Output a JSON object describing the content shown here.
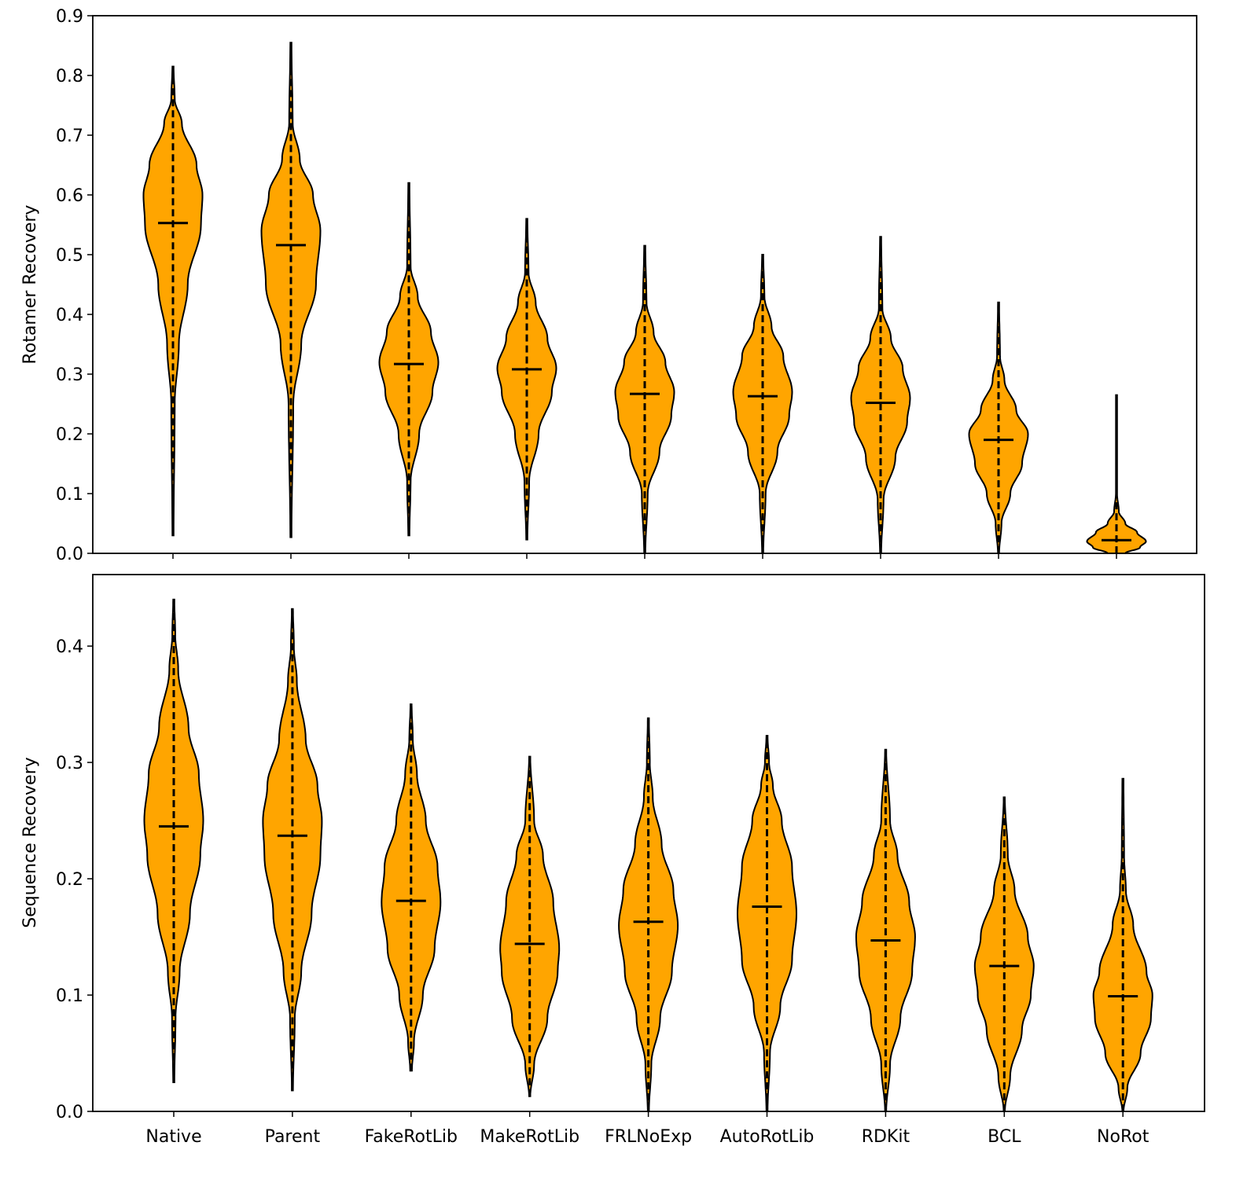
{
  "chart_data": [
    {
      "type": "violin",
      "panel": "top",
      "title": "",
      "xlabel": "",
      "ylabel": "Rotamer Recovery",
      "ylim": [
        0,
        0.9
      ],
      "yticks": [
        "0.0",
        "0.1",
        "0.2",
        "0.3",
        "0.4",
        "0.5",
        "0.6",
        "0.7",
        "0.8",
        "0.9"
      ],
      "fill_color": "#FFA500",
      "categories": [
        "Native",
        "Parent",
        "FakeRotLib",
        "MakeRotLib",
        "FRLNoExp",
        "AutoRotLib",
        "RDKit",
        "BCL",
        "NoRot"
      ],
      "violins": [
        {
          "min": 0.03,
          "max": 0.815,
          "median": 0.553,
          "profile": [
            [
              0.03,
              0.02
            ],
            [
              0.25,
              0.06
            ],
            [
              0.35,
              0.2
            ],
            [
              0.45,
              0.5
            ],
            [
              0.55,
              0.95
            ],
            [
              0.6,
              1.0
            ],
            [
              0.65,
              0.8
            ],
            [
              0.72,
              0.3
            ],
            [
              0.76,
              0.06
            ],
            [
              0.815,
              0.02
            ]
          ]
        },
        {
          "min": 0.027,
          "max": 0.855,
          "median": 0.516,
          "profile": [
            [
              0.027,
              0.02
            ],
            [
              0.25,
              0.08
            ],
            [
              0.35,
              0.35
            ],
            [
              0.45,
              0.85
            ],
            [
              0.54,
              1.0
            ],
            [
              0.6,
              0.75
            ],
            [
              0.66,
              0.3
            ],
            [
              0.72,
              0.06
            ],
            [
              0.855,
              0.02
            ]
          ]
        },
        {
          "min": 0.03,
          "max": 0.62,
          "median": 0.317,
          "profile": [
            [
              0.03,
              0.02
            ],
            [
              0.12,
              0.06
            ],
            [
              0.2,
              0.35
            ],
            [
              0.27,
              0.8
            ],
            [
              0.32,
              1.0
            ],
            [
              0.37,
              0.75
            ],
            [
              0.43,
              0.3
            ],
            [
              0.48,
              0.06
            ],
            [
              0.62,
              0.02
            ]
          ]
        },
        {
          "min": 0.023,
          "max": 0.56,
          "median": 0.308,
          "profile": [
            [
              0.023,
              0.02
            ],
            [
              0.12,
              0.08
            ],
            [
              0.2,
              0.4
            ],
            [
              0.27,
              0.85
            ],
            [
              0.31,
              1.0
            ],
            [
              0.36,
              0.7
            ],
            [
              0.42,
              0.3
            ],
            [
              0.47,
              0.06
            ],
            [
              0.56,
              0.02
            ]
          ]
        },
        {
          "min": 0.0,
          "max": 0.515,
          "median": 0.267,
          "profile": [
            [
              0.0,
              0.02
            ],
            [
              0.1,
              0.1
            ],
            [
              0.17,
              0.5
            ],
            [
              0.23,
              0.9
            ],
            [
              0.27,
              1.0
            ],
            [
              0.32,
              0.7
            ],
            [
              0.37,
              0.3
            ],
            [
              0.42,
              0.06
            ],
            [
              0.515,
              0.02
            ]
          ]
        },
        {
          "min": 0.0,
          "max": 0.5,
          "median": 0.263,
          "profile": [
            [
              0.0,
              0.02
            ],
            [
              0.1,
              0.1
            ],
            [
              0.17,
              0.5
            ],
            [
              0.23,
              0.9
            ],
            [
              0.27,
              1.0
            ],
            [
              0.33,
              0.7
            ],
            [
              0.38,
              0.3
            ],
            [
              0.43,
              0.06
            ],
            [
              0.5,
              0.02
            ]
          ]
        },
        {
          "min": 0.0,
          "max": 0.53,
          "median": 0.252,
          "profile": [
            [
              0.0,
              0.02
            ],
            [
              0.09,
              0.1
            ],
            [
              0.16,
              0.5
            ],
            [
              0.22,
              0.9
            ],
            [
              0.26,
              1.0
            ],
            [
              0.31,
              0.75
            ],
            [
              0.36,
              0.35
            ],
            [
              0.41,
              0.06
            ],
            [
              0.53,
              0.02
            ]
          ]
        },
        {
          "min": 0.0,
          "max": 0.42,
          "median": 0.19,
          "profile": [
            [
              0.0,
              0.02
            ],
            [
              0.05,
              0.1
            ],
            [
              0.1,
              0.4
            ],
            [
              0.15,
              0.8
            ],
            [
              0.2,
              1.0
            ],
            [
              0.24,
              0.6
            ],
            [
              0.29,
              0.2
            ],
            [
              0.33,
              0.05
            ],
            [
              0.42,
              0.02
            ]
          ]
        },
        {
          "min": 0.0,
          "max": 0.265,
          "median": 0.022,
          "profile": [
            [
              0.0,
              0.3
            ],
            [
              0.01,
              0.8
            ],
            [
              0.02,
              1.0
            ],
            [
              0.035,
              0.7
            ],
            [
              0.05,
              0.3
            ],
            [
              0.07,
              0.08
            ],
            [
              0.1,
              0.02
            ],
            [
              0.265,
              0.02
            ]
          ]
        }
      ]
    },
    {
      "type": "violin",
      "panel": "bottom",
      "title": "",
      "xlabel": "",
      "ylabel": "Sequence Recovery",
      "ylim": [
        0,
        0.4615
      ],
      "yticks": [
        "0.0",
        "0.1",
        "0.2",
        "0.3",
        "0.4"
      ],
      "fill_color": "#FFA500",
      "categories": [
        "Native",
        "Parent",
        "FakeRotLib",
        "MakeRotLib",
        "FRLNoExp",
        "AutoRotLib",
        "RDKit",
        "BCL",
        "NoRot"
      ],
      "violins": [
        {
          "min": 0.025,
          "max": 0.44,
          "median": 0.245,
          "profile": [
            [
              0.025,
              0.02
            ],
            [
              0.08,
              0.06
            ],
            [
              0.12,
              0.2
            ],
            [
              0.17,
              0.55
            ],
            [
              0.22,
              0.9
            ],
            [
              0.25,
              1.0
            ],
            [
              0.29,
              0.85
            ],
            [
              0.33,
              0.5
            ],
            [
              0.38,
              0.15
            ],
            [
              0.41,
              0.05
            ],
            [
              0.44,
              0.02
            ]
          ]
        },
        {
          "min": 0.018,
          "max": 0.432,
          "median": 0.237,
          "profile": [
            [
              0.018,
              0.02
            ],
            [
              0.08,
              0.08
            ],
            [
              0.12,
              0.3
            ],
            [
              0.17,
              0.65
            ],
            [
              0.22,
              0.95
            ],
            [
              0.25,
              1.0
            ],
            [
              0.28,
              0.85
            ],
            [
              0.32,
              0.45
            ],
            [
              0.37,
              0.15
            ],
            [
              0.4,
              0.05
            ],
            [
              0.432,
              0.02
            ]
          ]
        },
        {
          "min": 0.035,
          "max": 0.35,
          "median": 0.181,
          "profile": [
            [
              0.035,
              0.03
            ],
            [
              0.06,
              0.1
            ],
            [
              0.1,
              0.4
            ],
            [
              0.14,
              0.8
            ],
            [
              0.18,
              1.0
            ],
            [
              0.21,
              0.9
            ],
            [
              0.25,
              0.5
            ],
            [
              0.29,
              0.2
            ],
            [
              0.32,
              0.06
            ],
            [
              0.35,
              0.02
            ]
          ]
        },
        {
          "min": 0.013,
          "max": 0.305,
          "median": 0.144,
          "profile": [
            [
              0.013,
              0.02
            ],
            [
              0.04,
              0.15
            ],
            [
              0.08,
              0.6
            ],
            [
              0.12,
              0.95
            ],
            [
              0.14,
              1.0
            ],
            [
              0.18,
              0.8
            ],
            [
              0.22,
              0.45
            ],
            [
              0.25,
              0.15
            ],
            [
              0.305,
              0.02
            ]
          ]
        },
        {
          "min": 0.0,
          "max": 0.338,
          "median": 0.163,
          "profile": [
            [
              0.0,
              0.02
            ],
            [
              0.04,
              0.1
            ],
            [
              0.08,
              0.4
            ],
            [
              0.12,
              0.8
            ],
            [
              0.16,
              1.0
            ],
            [
              0.19,
              0.85
            ],
            [
              0.23,
              0.45
            ],
            [
              0.27,
              0.15
            ],
            [
              0.3,
              0.05
            ],
            [
              0.338,
              0.02
            ]
          ]
        },
        {
          "min": 0.0,
          "max": 0.323,
          "median": 0.176,
          "profile": [
            [
              0.0,
              0.02
            ],
            [
              0.05,
              0.1
            ],
            [
              0.09,
              0.45
            ],
            [
              0.13,
              0.85
            ],
            [
              0.17,
              1.0
            ],
            [
              0.21,
              0.85
            ],
            [
              0.25,
              0.5
            ],
            [
              0.28,
              0.2
            ],
            [
              0.3,
              0.07
            ],
            [
              0.323,
              0.02
            ]
          ]
        },
        {
          "min": 0.0,
          "max": 0.311,
          "median": 0.147,
          "profile": [
            [
              0.0,
              0.02
            ],
            [
              0.04,
              0.15
            ],
            [
              0.08,
              0.5
            ],
            [
              0.12,
              0.9
            ],
            [
              0.15,
              1.0
            ],
            [
              0.18,
              0.8
            ],
            [
              0.22,
              0.4
            ],
            [
              0.25,
              0.15
            ],
            [
              0.311,
              0.02
            ]
          ]
        },
        {
          "min": 0.0,
          "max": 0.27,
          "median": 0.125,
          "profile": [
            [
              0.0,
              0.02
            ],
            [
              0.03,
              0.2
            ],
            [
              0.07,
              0.6
            ],
            [
              0.1,
              0.9
            ],
            [
              0.125,
              1.0
            ],
            [
              0.15,
              0.8
            ],
            [
              0.19,
              0.35
            ],
            [
              0.22,
              0.12
            ],
            [
              0.27,
              0.02
            ]
          ]
        },
        {
          "min": 0.0,
          "max": 0.286,
          "median": 0.099,
          "profile": [
            [
              0.0,
              0.02
            ],
            [
              0.02,
              0.15
            ],
            [
              0.05,
              0.6
            ],
            [
              0.08,
              0.95
            ],
            [
              0.1,
              1.0
            ],
            [
              0.12,
              0.8
            ],
            [
              0.16,
              0.35
            ],
            [
              0.19,
              0.1
            ],
            [
              0.22,
              0.04
            ],
            [
              0.286,
              0.02
            ]
          ]
        }
      ]
    }
  ]
}
